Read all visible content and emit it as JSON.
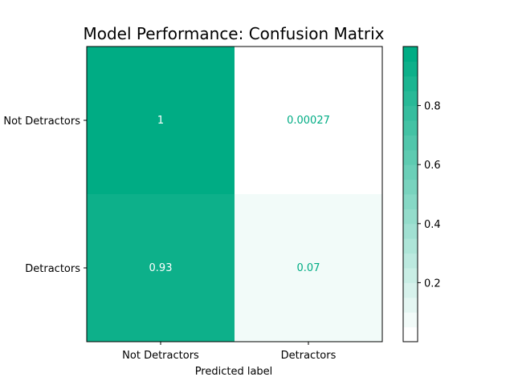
{
  "chart_data": {
    "type": "heatmap",
    "title": "Model Performance: Confusion Matrix",
    "xlabel": "Predicted label",
    "ylabel": "",
    "rows": [
      "Not Detractors",
      "Detractors"
    ],
    "columns": [
      "Not Detractors",
      "Detractors"
    ],
    "values": [
      [
        1,
        0.00027
      ],
      [
        0.93,
        0.07
      ]
    ],
    "value_labels": [
      [
        "1",
        "0.00027"
      ],
      [
        "0.93",
        "0.07"
      ]
    ],
    "colorbar": {
      "min": 0,
      "max": 1,
      "ticks": [
        0.2,
        0.4,
        0.6,
        0.8
      ],
      "tick_labels": [
        "0.2",
        "0.4",
        "0.6",
        "0.8"
      ],
      "levels": 20
    },
    "colors": {
      "low": "#ffffff",
      "high": "#00ac84",
      "dark_text": "#ffffff",
      "light_text": "#00ac84",
      "axis": "#000000"
    }
  }
}
